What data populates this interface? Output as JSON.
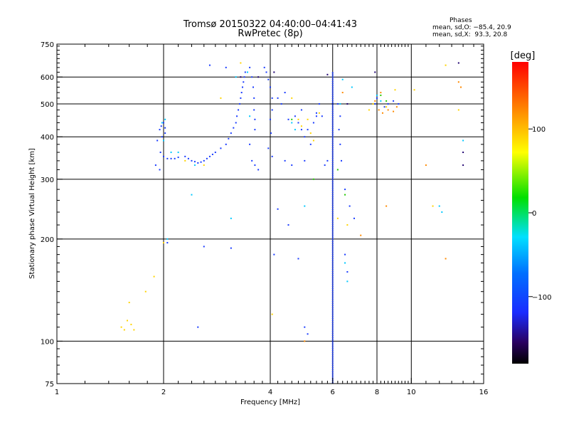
{
  "header": {
    "title_line1": "Tromsø 20150322 04:40:00–04:41:43",
    "title_line2": "RwPretec (8p)"
  },
  "phases": {
    "heading": "Phases",
    "line_o": "mean, sd,O: −85.4, 20.9",
    "line_x": "mean, sd,X:  93.3, 20.8"
  },
  "colorbar": {
    "unit_label": "[deg]",
    "ticks": [
      "100",
      "0",
      "−100"
    ],
    "tick_values": [
      100,
      0,
      -100
    ],
    "range": [
      -180,
      180
    ]
  },
  "chart_data": {
    "type": "scatter",
    "xlabel": "Frequency [MHz]",
    "ylabel": "Stationary phase Virtual Height [km]",
    "x_scale": "log",
    "y_scale": "log",
    "xlim": [
      1,
      16
    ],
    "ylim": [
      75,
      750
    ],
    "xticks": [
      1,
      2,
      4,
      6,
      8,
      10,
      16
    ],
    "xtick_labels": [
      "1",
      "2",
      "4",
      "6",
      "8",
      "10",
      "16"
    ],
    "yticks": [
      75,
      100,
      200,
      300,
      400,
      500,
      600,
      750
    ],
    "ytick_labels": [
      "75",
      "100",
      "200",
      "300",
      "400",
      "500",
      "600",
      "750"
    ],
    "grid_x": [
      2,
      4,
      6,
      8,
      10
    ],
    "grid_y": [
      100,
      200,
      300,
      400,
      500,
      600
    ],
    "grid": true,
    "series": [
      {
        "color": "#1a3cff",
        "points": [
          [
            1.95,
            420
          ],
          [
            1.97,
            430
          ],
          [
            2.0,
            440
          ],
          [
            2.02,
            425
          ],
          [
            1.98,
            400
          ],
          [
            1.96,
            360
          ],
          [
            2.0,
            350
          ],
          [
            2.05,
            345
          ],
          [
            2.1,
            345
          ],
          [
            2.15,
            345
          ],
          [
            2.2,
            348
          ],
          [
            2.3,
            350
          ],
          [
            2.35,
            345
          ],
          [
            2.4,
            340
          ],
          [
            2.45,
            338
          ],
          [
            2.5,
            335
          ],
          [
            2.55,
            337
          ],
          [
            2.6,
            340
          ],
          [
            2.65,
            345
          ],
          [
            2.7,
            350
          ],
          [
            2.75,
            355
          ],
          [
            2.8,
            360
          ],
          [
            2.9,
            370
          ],
          [
            3.0,
            380
          ],
          [
            3.05,
            395
          ],
          [
            3.1,
            410
          ],
          [
            3.15,
            425
          ],
          [
            3.2,
            440
          ],
          [
            3.22,
            460
          ],
          [
            3.25,
            480
          ],
          [
            3.28,
            500
          ],
          [
            3.3,
            520
          ],
          [
            3.32,
            540
          ],
          [
            3.34,
            560
          ],
          [
            3.36,
            580
          ],
          [
            3.38,
            600
          ],
          [
            3.4,
            620
          ],
          [
            3.5,
            640
          ],
          [
            3.55,
            600
          ],
          [
            3.58,
            560
          ],
          [
            3.6,
            520
          ],
          [
            3.6,
            480
          ],
          [
            3.62,
            450
          ],
          [
            3.62,
            420
          ],
          [
            3.5,
            380
          ],
          [
            3.55,
            340
          ],
          [
            3.62,
            330
          ],
          [
            3.7,
            320
          ],
          [
            1.95,
            320
          ],
          [
            1.9,
            330
          ],
          [
            2.02,
            410
          ],
          [
            1.92,
            390
          ],
          [
            3.9,
            620
          ],
          [
            3.95,
            590
          ],
          [
            4.0,
            560
          ],
          [
            4.05,
            520
          ],
          [
            4.05,
            480
          ],
          [
            4.0,
            450
          ],
          [
            4.02,
            410
          ],
          [
            3.95,
            370
          ],
          [
            4.05,
            350
          ],
          [
            4.2,
            520
          ],
          [
            4.3,
            500
          ],
          [
            4.4,
            540
          ],
          [
            4.5,
            450
          ],
          [
            4.7,
            460
          ],
          [
            4.8,
            440
          ],
          [
            4.9,
            420
          ],
          [
            5.0,
            400
          ],
          [
            5.1,
            420
          ],
          [
            5.2,
            380
          ],
          [
            5.0,
            340
          ],
          [
            4.6,
            330
          ],
          [
            4.4,
            340
          ],
          [
            5.3,
            440
          ],
          [
            5.4,
            470
          ],
          [
            5.5,
            500
          ],
          [
            5.6,
            460
          ],
          [
            5.7,
            330
          ],
          [
            5.8,
            340
          ],
          [
            6.2,
            500
          ],
          [
            6.3,
            460
          ],
          [
            6.25,
            420
          ],
          [
            6.3,
            380
          ],
          [
            6.35,
            340
          ],
          [
            2.5,
            110
          ],
          [
            2.05,
            195
          ],
          [
            2.6,
            190
          ],
          [
            3.1,
            188
          ],
          [
            4.2,
            245
          ],
          [
            4.1,
            180
          ],
          [
            4.8,
            175
          ],
          [
            4.5,
            220
          ],
          [
            5.0,
            110
          ],
          [
            5.1,
            105
          ],
          [
            6.5,
            280
          ],
          [
            6.7,
            250
          ],
          [
            6.9,
            230
          ],
          [
            6.5,
            180
          ],
          [
            6.6,
            160
          ],
          [
            7.9,
            500
          ],
          [
            8.0,
            520
          ],
          [
            8.4,
            490
          ],
          [
            8.6,
            500
          ],
          [
            8.9,
            510
          ],
          [
            9.2,
            500
          ],
          [
            2.7,
            650
          ],
          [
            3.0,
            640
          ],
          [
            3.85,
            640
          ],
          [
            4.9,
            480
          ],
          [
            5.4,
            460
          ]
        ]
      },
      {
        "color": "#00c8ff",
        "points": [
          [
            1.98,
            440
          ],
          [
            2.02,
            450
          ],
          [
            2.0,
            390
          ],
          [
            2.1,
            360
          ],
          [
            2.2,
            360
          ],
          [
            2.45,
            330
          ],
          [
            2.4,
            270
          ],
          [
            3.1,
            230
          ],
          [
            3.5,
            460
          ],
          [
            3.45,
            620
          ],
          [
            3.2,
            600
          ],
          [
            4.6,
            440
          ],
          [
            4.7,
            420
          ],
          [
            5.0,
            250
          ],
          [
            6.3,
            500
          ],
          [
            6.4,
            590
          ],
          [
            6.5,
            170
          ],
          [
            6.6,
            150
          ],
          [
            6.8,
            560
          ],
          [
            8.0,
            530
          ],
          [
            8.2,
            510
          ],
          [
            12.0,
            250
          ],
          [
            12.2,
            240
          ],
          [
            14.0,
            390
          ],
          [
            2.05,
            200
          ]
        ]
      },
      {
        "color": "#ffd400",
        "points": [
          [
            1.52,
            110
          ],
          [
            1.55,
            108
          ],
          [
            1.58,
            115
          ],
          [
            1.62,
            112
          ],
          [
            1.65,
            108
          ],
          [
            1.6,
            130
          ],
          [
            1.78,
            140
          ],
          [
            1.88,
            155
          ],
          [
            2.0,
            195
          ],
          [
            2.3,
            340
          ],
          [
            2.6,
            330
          ],
          [
            2.9,
            520
          ],
          [
            3.3,
            660
          ],
          [
            4.6,
            520
          ],
          [
            4.8,
            450
          ],
          [
            4.9,
            430
          ],
          [
            5.1,
            450
          ],
          [
            5.2,
            410
          ],
          [
            5.3,
            390
          ],
          [
            5.5,
            470
          ],
          [
            6.2,
            230
          ],
          [
            7.6,
            480
          ],
          [
            7.8,
            500
          ],
          [
            8.5,
            490
          ],
          [
            9.0,
            550
          ],
          [
            10.2,
            550
          ],
          [
            11.5,
            250
          ],
          [
            12.5,
            650
          ],
          [
            13.6,
            480
          ],
          [
            4.05,
            120
          ],
          [
            6.6,
            220
          ]
        ]
      },
      {
        "color": "#ff8a00",
        "points": [
          [
            7.9,
            510
          ],
          [
            8.1,
            480
          ],
          [
            8.3,
            470
          ],
          [
            8.6,
            480
          ],
          [
            8.9,
            475
          ],
          [
            9.1,
            490
          ],
          [
            8.2,
            540
          ],
          [
            6.4,
            540
          ],
          [
            7.2,
            205
          ],
          [
            12.5,
            175
          ],
          [
            13.6,
            580
          ],
          [
            13.8,
            560
          ],
          [
            5.0,
            100
          ],
          [
            11.0,
            330
          ],
          [
            8.5,
            250
          ]
        ]
      },
      {
        "color": "#22c800",
        "points": [
          [
            5.3,
            300
          ],
          [
            6.5,
            270
          ],
          [
            8.5,
            510
          ],
          [
            8.2,
            530
          ],
          [
            4.6,
            450
          ],
          [
            6.2,
            320
          ]
        ]
      },
      {
        "color": "#1e0070",
        "points": [
          [
            3.3,
            600
          ],
          [
            3.7,
            600
          ],
          [
            4.1,
            620
          ],
          [
            5.8,
            610
          ],
          [
            6.6,
            500
          ],
          [
            7.9,
            620
          ],
          [
            13.6,
            660
          ],
          [
            14.0,
            330
          ],
          [
            14.0,
            360
          ]
        ]
      }
    ],
    "vertical_band": {
      "x": 6.0,
      "y_from": 75,
      "y_to": 620,
      "color": "#1a3cff"
    }
  }
}
